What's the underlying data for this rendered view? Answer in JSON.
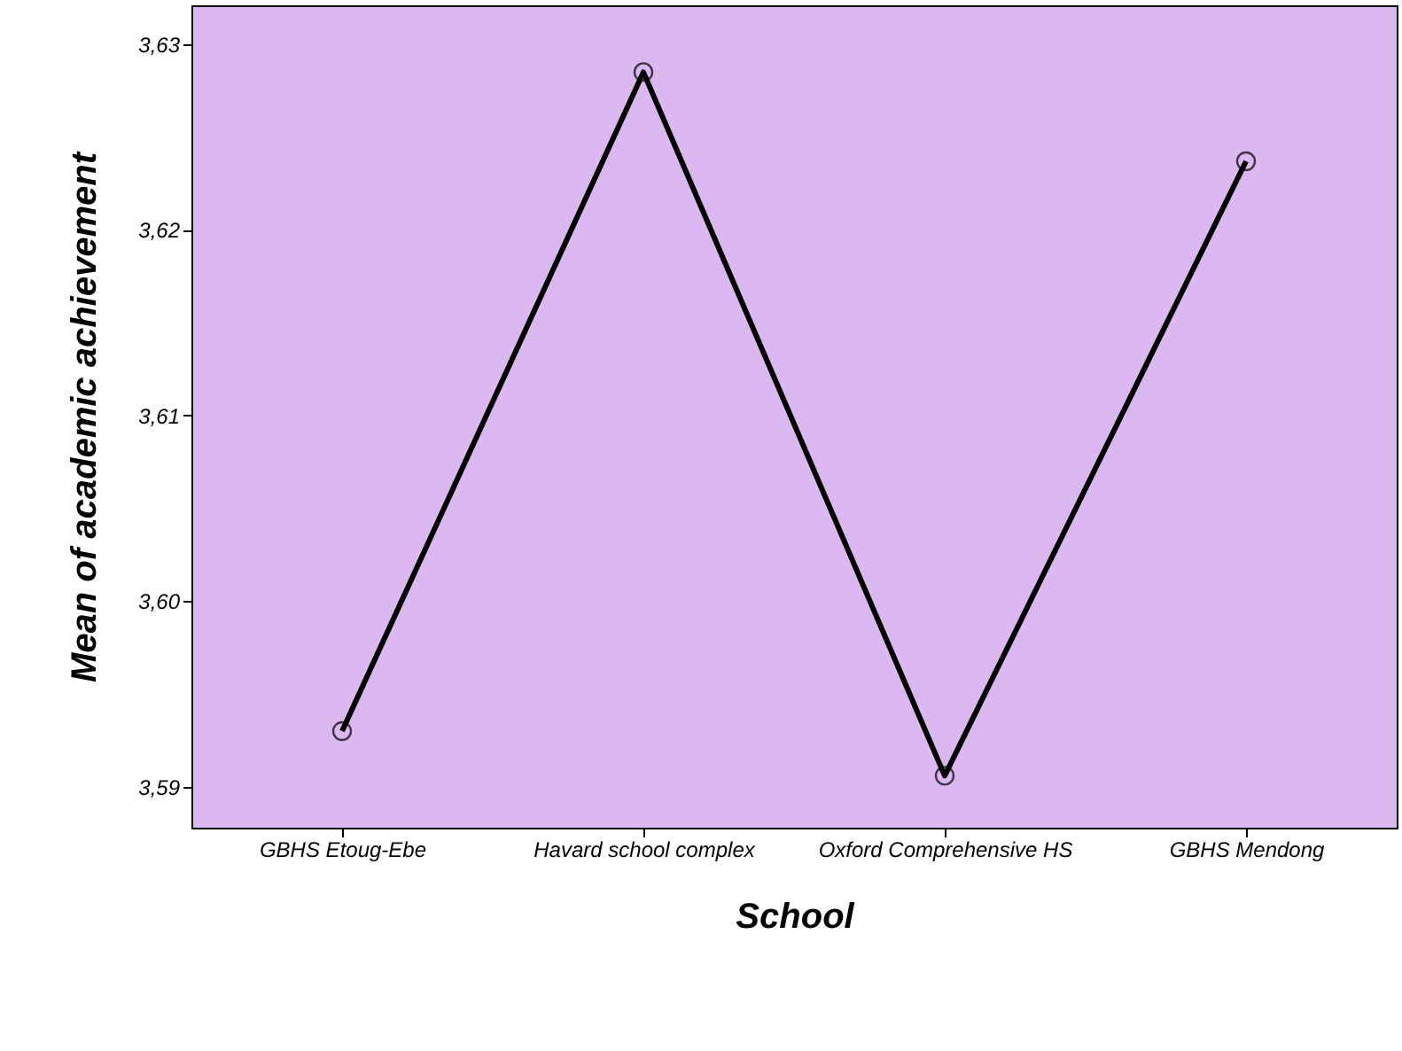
{
  "chart_data": {
    "type": "line",
    "xlabel": "School",
    "ylabel": "Mean of academic achievement",
    "categories": [
      "GBHS Etoug-Ebe",
      "Havard school complex",
      "Oxford Comprehensive HS",
      "GBHS Mendong"
    ],
    "series": [
      {
        "color": "#000000",
        "values": [
          3.593,
          3.6285,
          3.5906,
          3.6237
        ]
      }
    ],
    "ylim": [
      3.5878,
      3.6321
    ],
    "yticks": [
      {
        "value": 3.59,
        "label": "3,59"
      },
      {
        "value": 3.6,
        "label": "3,60"
      },
      {
        "value": 3.61,
        "label": "3,61"
      },
      {
        "value": 3.62,
        "label": "3,62"
      },
      {
        "value": 3.63,
        "label": "3,63"
      }
    ],
    "grid": false,
    "marker": "circle",
    "line_style": "solid"
  }
}
